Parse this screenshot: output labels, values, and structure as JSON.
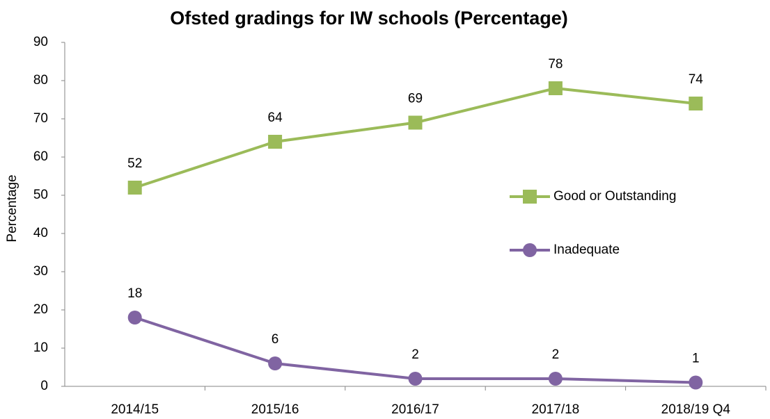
{
  "chart_data": {
    "type": "line",
    "title": "Ofsted gradings for IW schools (Percentage)",
    "ylabel": "Percentage",
    "categories": [
      "2014/15",
      "2015/16",
      "2016/17",
      "2017/18",
      "2018/19 Q4"
    ],
    "series": [
      {
        "name": "Good or Outstanding",
        "color": "#9bbb59",
        "marker": "square",
        "values": [
          52,
          64,
          69,
          78,
          74
        ]
      },
      {
        "name": "Inadequate",
        "color": "#8064a2",
        "marker": "circle",
        "values": [
          18,
          6,
          2,
          2,
          1
        ]
      }
    ],
    "ylim": [
      0,
      90
    ],
    "yticks": [
      0,
      10,
      20,
      30,
      40,
      50,
      60,
      70,
      80,
      90
    ],
    "grid": false,
    "legend": "right",
    "data_labels": true
  }
}
